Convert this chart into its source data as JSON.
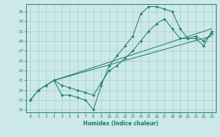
{
  "xlabel": "Humidex (Indice chaleur)",
  "ylabel": "",
  "bg_color": "#cce8e8",
  "grid_color": "#aad0d0",
  "line_color": "#1a7a6a",
  "xlim": [
    -0.5,
    23.5
  ],
  "ylim": [
    14.5,
    36.5
  ],
  "xticks": [
    0,
    1,
    2,
    3,
    4,
    5,
    6,
    7,
    8,
    9,
    10,
    11,
    12,
    13,
    14,
    15,
    16,
    17,
    18,
    19,
    20,
    21,
    22,
    23
  ],
  "yticks": [
    15,
    17,
    19,
    21,
    23,
    25,
    27,
    29,
    31,
    33,
    35
  ],
  "line1_x": [
    0,
    1,
    2,
    3,
    4,
    5,
    6,
    7,
    8,
    9,
    10,
    11,
    12,
    13,
    14,
    15,
    16,
    17,
    18,
    19,
    20,
    21,
    22,
    23
  ],
  "line1_y": [
    17.0,
    19.0,
    20.0,
    21.0,
    18.0,
    18.0,
    17.5,
    17.0,
    15.0,
    20.0,
    24.0,
    26.0,
    28.0,
    30.0,
    34.5,
    36.0,
    36.0,
    35.5,
    35.0,
    31.5,
    29.5,
    29.5,
    28.0,
    31.0
  ],
  "line2_x": [
    0,
    1,
    2,
    3,
    4,
    5,
    6,
    7,
    8,
    9,
    10,
    11,
    12,
    13,
    14,
    15,
    16,
    17,
    18,
    19,
    20,
    21,
    22,
    23
  ],
  "line2_y": [
    17.0,
    19.0,
    20.0,
    21.0,
    20.0,
    19.5,
    19.0,
    18.5,
    18.0,
    20.5,
    23.0,
    24.0,
    25.5,
    27.0,
    29.0,
    31.0,
    32.5,
    33.5,
    31.5,
    29.5,
    29.5,
    30.0,
    29.0,
    30.5
  ],
  "line3_x": [
    3,
    23
  ],
  "line3_y": [
    21.0,
    31.5
  ],
  "line4_x": [
    3,
    23
  ],
  "line4_y": [
    21.0,
    30.0
  ]
}
